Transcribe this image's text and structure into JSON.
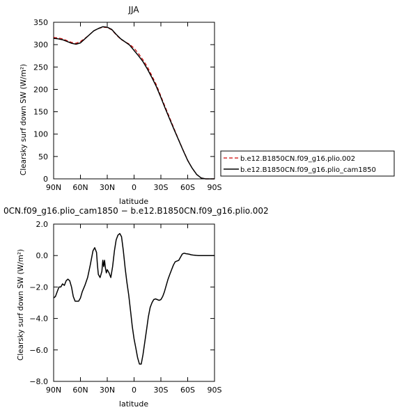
{
  "chart_data": [
    {
      "type": "line",
      "title": "JJA",
      "xlabel": "latitude",
      "ylabel": "Clearsky surf down SW (W/m²)",
      "xlim": [
        90,
        -90
      ],
      "ylim": [
        0,
        350
      ],
      "x_ticks": [
        90,
        60,
        30,
        0,
        -30,
        -60,
        -90
      ],
      "x_tick_labels": [
        "90N",
        "60N",
        "30N",
        "0",
        "30S",
        "60S",
        "90S"
      ],
      "y_ticks": [
        0,
        50,
        100,
        150,
        200,
        250,
        300,
        350
      ],
      "y_tick_labels": [
        "0",
        "50",
        "100",
        "150",
        "200",
        "250",
        "300",
        "350"
      ],
      "legend_position": "right",
      "series": [
        {
          "name": "b.e12.B1850CN.f09_g16.plio.002",
          "color": "#cc0000",
          "style": "dashed",
          "x": [
            90,
            85,
            80,
            75,
            70,
            65,
            60,
            55,
            50,
            45,
            40,
            35,
            30,
            25,
            20,
            15,
            10,
            5,
            0,
            -5,
            -10,
            -15,
            -20,
            -25,
            -30,
            -35,
            -40,
            -45,
            -50,
            -55,
            -60,
            -65,
            -70,
            -75,
            -80,
            -85,
            -90
          ],
          "y": [
            316,
            315,
            313,
            309,
            305,
            303,
            307,
            314,
            322,
            331,
            336,
            339,
            338,
            333,
            322,
            312,
            306,
            301,
            292,
            280,
            266,
            250,
            230,
            210,
            185,
            160,
            136,
            111,
            87,
            64,
            42,
            24,
            10,
            2,
            0,
            0,
            0
          ]
        },
        {
          "name": "b.e12.B1850CN.f09_g16.plio_cam1850",
          "color": "#000000",
          "style": "solid",
          "x": [
            90,
            85,
            80,
            75,
            70,
            65,
            60,
            55,
            50,
            45,
            40,
            35,
            30,
            25,
            20,
            15,
            10,
            5,
            0,
            -5,
            -10,
            -15,
            -20,
            -25,
            -30,
            -35,
            -40,
            -45,
            -50,
            -55,
            -60,
            -65,
            -70,
            -75,
            -80,
            -85,
            -90
          ],
          "y": [
            314,
            313,
            311,
            307,
            303,
            301,
            304,
            313,
            322,
            331,
            336,
            340,
            339,
            334,
            323,
            313,
            306,
            299,
            287,
            275,
            262,
            245,
            226,
            206,
            182,
            157,
            133,
            109,
            86,
            63,
            41,
            24,
            10,
            2,
            0,
            0,
            0
          ]
        }
      ]
    },
    {
      "type": "line",
      "title": "0CN.f09_g16.plio_cam1850 − b.e12.B1850CN.f09_g16.plio.002",
      "xlabel": "latitude",
      "ylabel": "Clearsky surf down SW (W/m²)",
      "xlim": [
        90,
        -90
      ],
      "ylim": [
        -8,
        2
      ],
      "x_ticks": [
        90,
        60,
        30,
        0,
        -30,
        -60,
        -90
      ],
      "x_tick_labels": [
        "90N",
        "60N",
        "30N",
        "0",
        "30S",
        "60S",
        "90S"
      ],
      "y_ticks": [
        -8,
        -6,
        -4,
        -2,
        0,
        2
      ],
      "y_tick_labels": [
        "−8.0",
        "−6.0",
        "−4.0",
        "−2.0",
        "0.0",
        "2.0"
      ],
      "series": [
        {
          "color": "#000000",
          "style": "solid",
          "x": [
            90,
            88,
            86,
            84,
            82,
            80,
            78,
            76,
            74,
            72,
            70,
            68,
            66,
            64,
            62,
            60,
            58,
            55,
            52,
            49,
            46,
            44,
            42,
            41,
            40,
            38,
            36,
            35,
            34,
            33,
            32,
            31,
            30,
            28,
            26,
            24,
            22,
            20,
            18,
            16,
            14,
            12,
            10,
            8,
            6,
            4,
            2,
            0,
            -2,
            -4,
            -6,
            -8,
            -10,
            -12,
            -14,
            -16,
            -18,
            -20,
            -22,
            -24,
            -26,
            -28,
            -30,
            -32,
            -34,
            -36,
            -38,
            -40,
            -42,
            -44,
            -46,
            -48,
            -50,
            -52,
            -54,
            -56,
            -58,
            -60,
            -62,
            -64,
            -66,
            -68,
            -70,
            -72,
            -74,
            -76,
            -78,
            -80,
            -82,
            -84,
            -86,
            -88,
            -90
          ],
          "y": [
            -2.7,
            -2.6,
            -2.3,
            -2.0,
            -2.0,
            -1.8,
            -1.9,
            -1.6,
            -1.5,
            -1.6,
            -2.0,
            -2.6,
            -2.9,
            -2.9,
            -2.9,
            -2.7,
            -2.3,
            -1.9,
            -1.4,
            -0.6,
            0.3,
            0.5,
            0.2,
            -0.6,
            -1.2,
            -1.4,
            -1.0,
            -0.3,
            -0.7,
            -0.3,
            -0.8,
            -1.1,
            -0.9,
            -1.1,
            -1.4,
            -0.7,
            0.3,
            1.0,
            1.3,
            1.4,
            1.2,
            0.3,
            -0.8,
            -1.7,
            -2.5,
            -3.5,
            -4.5,
            -5.3,
            -5.9,
            -6.5,
            -6.9,
            -6.9,
            -6.3,
            -5.5,
            -4.7,
            -3.9,
            -3.3,
            -3.0,
            -2.8,
            -2.75,
            -2.8,
            -2.85,
            -2.8,
            -2.6,
            -2.3,
            -1.9,
            -1.5,
            -1.2,
            -0.9,
            -0.6,
            -0.4,
            -0.35,
            -0.3,
            -0.1,
            0.1,
            0.15,
            0.12,
            0.1,
            0.08,
            0.05,
            0.03,
            0.02,
            0.01,
            0.0,
            0.0,
            0.0,
            0.0,
            0.0,
            0.0,
            0.0,
            0.0,
            0.0,
            0.0
          ]
        }
      ]
    }
  ]
}
